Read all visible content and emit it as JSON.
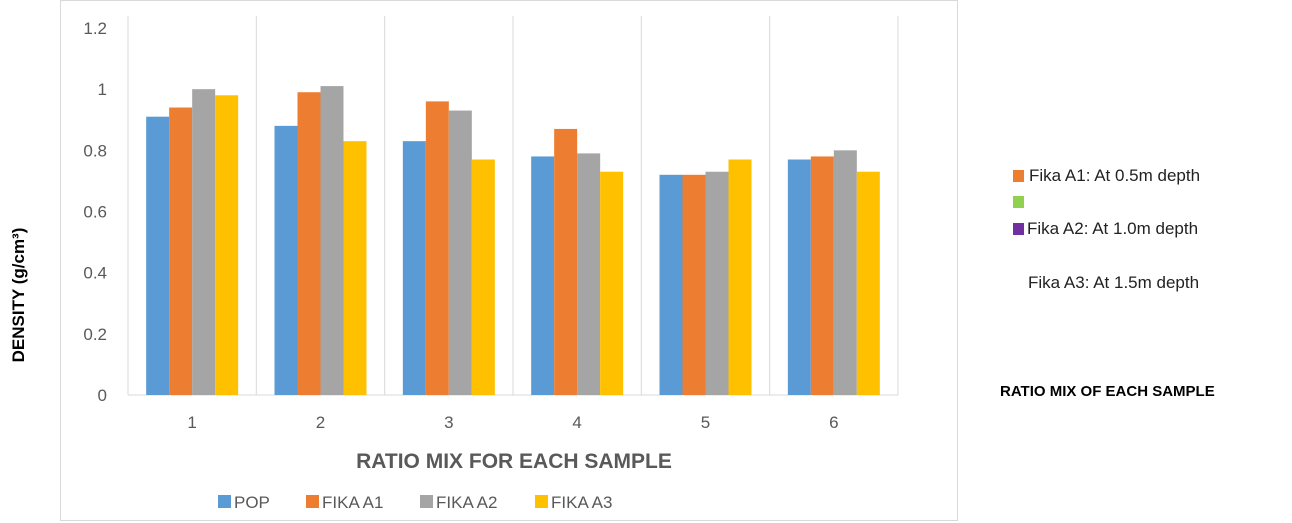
{
  "chart_data": {
    "type": "bar",
    "categories": [
      "1",
      "2",
      "3",
      "4",
      "5",
      "6"
    ],
    "series": [
      {
        "name": "POP",
        "color": "#5b9bd5",
        "values": [
          0.91,
          0.88,
          0.83,
          0.78,
          0.72,
          0.77
        ]
      },
      {
        "name": "FIKA A1",
        "color": "#ed7d31",
        "values": [
          0.94,
          0.99,
          0.96,
          0.87,
          0.72,
          0.78
        ]
      },
      {
        "name": "FIKA A2",
        "color": "#a5a5a5",
        "values": [
          1.0,
          1.01,
          0.93,
          0.79,
          0.73,
          0.8
        ]
      },
      {
        "name": "FIKA A3",
        "color": "#ffc000",
        "values": [
          0.98,
          0.83,
          0.77,
          0.73,
          0.77,
          0.73
        ]
      }
    ],
    "ylim": [
      0,
      1.2
    ],
    "yticks": [
      "0",
      "0.2",
      "0.4",
      "0.6",
      "0.8",
      "1",
      "1.2"
    ],
    "xlabel": "RATIO MIX FOR EACH SAMPLE",
    "ylabel": "DENSITY (g/cm³)",
    "grid": "vertical category separators",
    "legend_position": "bottom"
  },
  "side_legend": {
    "items": [
      {
        "text": "Fika A1: At 0.5m depth",
        "color": "#ed7d31"
      },
      {
        "text": "",
        "color": "#92d050"
      },
      {
        "text": "Fika A2: At 1.0m depth",
        "color": "#7030a0"
      },
      {
        "text": "Fika A3: At 1.5m depth",
        "color": ""
      }
    ],
    "title": "RATIO MIX OF EACH SAMPLE"
  }
}
